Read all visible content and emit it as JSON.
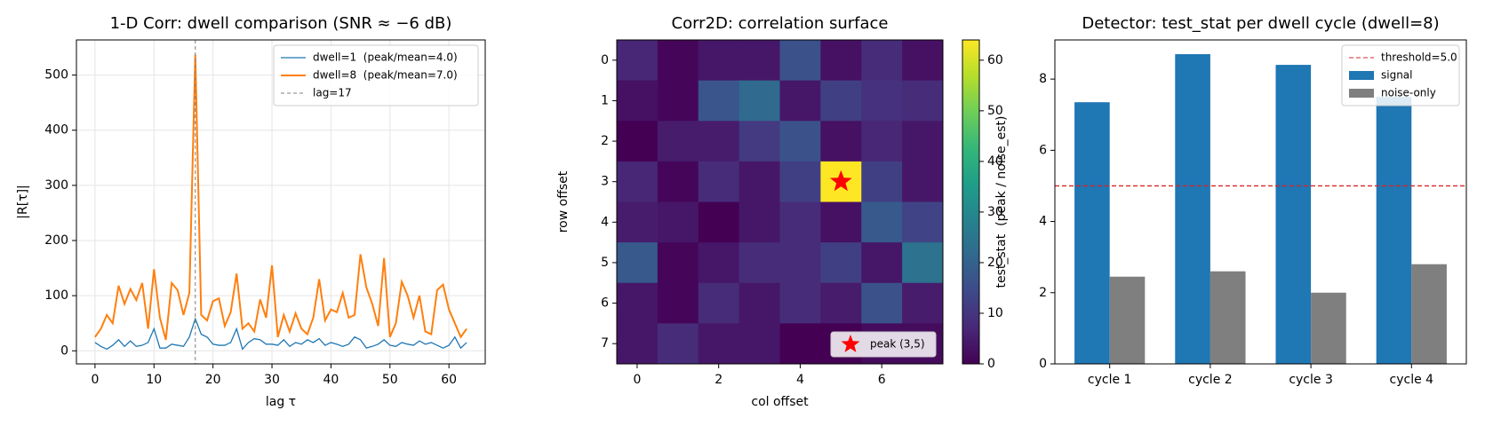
{
  "chart_data": [
    {
      "type": "line",
      "title": "1-D Corr: dwell comparison (SNR ≈ −6 dB)",
      "xlabel": "lag τ",
      "ylabel": "|R[τ]|",
      "x": [
        0,
        1,
        2,
        3,
        4,
        5,
        6,
        7,
        8,
        9,
        10,
        11,
        12,
        13,
        14,
        15,
        16,
        17,
        18,
        19,
        20,
        21,
        22,
        23,
        24,
        25,
        26,
        27,
        28,
        29,
        30,
        31,
        32,
        33,
        34,
        35,
        36,
        37,
        38,
        39,
        40,
        41,
        42,
        43,
        44,
        45,
        46,
        47,
        48,
        49,
        50,
        51,
        52,
        53,
        54,
        55,
        56,
        57,
        58,
        59,
        60,
        61,
        62,
        63
      ],
      "series": [
        {
          "name": "dwell=1  (peak/mean=4.0)",
          "color": "#1f77b4",
          "values": [
            15,
            8,
            3,
            10,
            20,
            8,
            18,
            8,
            10,
            15,
            40,
            5,
            5,
            12,
            10,
            8,
            25,
            58,
            30,
            25,
            12,
            10,
            10,
            15,
            40,
            3,
            15,
            22,
            20,
            12,
            12,
            10,
            20,
            8,
            15,
            12,
            20,
            15,
            22,
            10,
            15,
            12,
            8,
            12,
            25,
            20,
            5,
            8,
            12,
            20,
            10,
            8,
            15,
            12,
            10,
            18,
            12,
            15,
            10,
            5,
            10,
            25,
            5,
            15
          ]
        },
        {
          "name": "dwell=8  (peak/mean=7.0)",
          "color": "#ff7f0e",
          "values": [
            25,
            40,
            65,
            50,
            118,
            85,
            112,
            92,
            123,
            40,
            148,
            60,
            20,
            123,
            110,
            65,
            105,
            537,
            65,
            55,
            90,
            95,
            45,
            70,
            140,
            40,
            50,
            35,
            93,
            60,
            155,
            25,
            65,
            35,
            68,
            40,
            30,
            60,
            130,
            55,
            75,
            70,
            105,
            60,
            65,
            175,
            115,
            85,
            45,
            168,
            25,
            50,
            125,
            100,
            60,
            100,
            35,
            30,
            110,
            120,
            75,
            50,
            25,
            40
          ]
        }
      ],
      "vline": {
        "x": 17,
        "label": "lag=17",
        "color": "#7f7f7f"
      },
      "xlim": [
        -3.15,
        66.15
      ],
      "ylim": [
        -23.7,
        563.7
      ],
      "xticks": [
        0,
        10,
        20,
        30,
        40,
        50,
        60
      ],
      "yticks": [
        0,
        100,
        200,
        300,
        400,
        500
      ],
      "grid": true,
      "legend": "upper right"
    },
    {
      "type": "heatmap",
      "title": "Corr2D: correlation surface",
      "xlabel": "col offset",
      "ylabel": "row offset",
      "z": [
        [
          7,
          1,
          4,
          4,
          16,
          3,
          8,
          3
        ],
        [
          3,
          1,
          17,
          22,
          4,
          12,
          9,
          8
        ],
        [
          0,
          5,
          5,
          11,
          16,
          3,
          7,
          4
        ],
        [
          7,
          1,
          8,
          4,
          12,
          64,
          12,
          4
        ],
        [
          5,
          4,
          0,
          4,
          8,
          3,
          18,
          13
        ],
        [
          18,
          1,
          4,
          8,
          8,
          12,
          4,
          24
        ],
        [
          4,
          1,
          8,
          4,
          8,
          5,
          16,
          5
        ],
        [
          4,
          8,
          4,
          4,
          0,
          0,
          2,
          2
        ]
      ],
      "colormap": "viridis",
      "clim": [
        0,
        64
      ],
      "cticks": [
        0,
        10,
        20,
        30,
        40,
        50,
        60
      ],
      "xticks": [
        0,
        2,
        4,
        6
      ],
      "yticks": [
        0,
        1,
        2,
        3,
        4,
        5,
        6,
        7
      ],
      "marker": {
        "row": 3,
        "col": 5,
        "label": "peak (3,5)",
        "color": "#ff0000"
      },
      "legend": "lower right"
    },
    {
      "type": "bar",
      "title": "Detector: test_stat per dwell cycle (dwell=8)",
      "ylabel": "test_stat  (peak / noise_est)",
      "categories": [
        "cycle 1",
        "cycle 2",
        "cycle 3",
        "cycle 4"
      ],
      "series": [
        {
          "name": "signal",
          "color": "#1f77b4",
          "values": [
            7.35,
            8.7,
            8.4,
            7.5
          ]
        },
        {
          "name": "noise-only",
          "color": "#7f7f7f",
          "values": [
            2.45,
            2.6,
            2.0,
            2.8
          ]
        }
      ],
      "hline": {
        "value": 5.0,
        "label": "threshold=5.0",
        "color": "#d62728"
      },
      "ylim": [
        0,
        9.1
      ],
      "yticks": [
        0,
        2,
        4,
        6,
        8
      ],
      "legend": "upper right"
    }
  ]
}
